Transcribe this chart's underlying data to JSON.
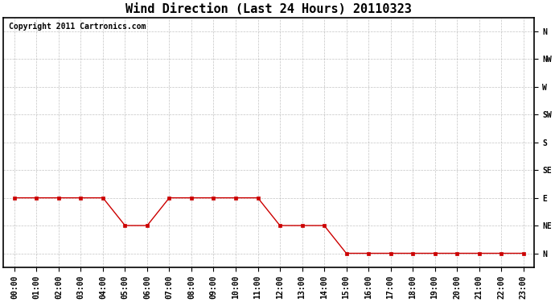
{
  "title": "Wind Direction (Last 24 Hours) 20110323",
  "copyright_text": "Copyright 2011 Cartronics.com",
  "x_labels": [
    "00:00",
    "01:00",
    "02:00",
    "03:00",
    "04:00",
    "05:00",
    "06:00",
    "07:00",
    "08:00",
    "09:00",
    "10:00",
    "11:00",
    "12:00",
    "13:00",
    "14:00",
    "15:00",
    "16:00",
    "17:00",
    "18:00",
    "19:00",
    "20:00",
    "21:00",
    "22:00",
    "23:00"
  ],
  "y_tick_positions": [
    0,
    1,
    2,
    3,
    4,
    5,
    6,
    7,
    8
  ],
  "y_tick_labels": [
    "N",
    "NE",
    "E",
    "SE",
    "S",
    "SW",
    "W",
    "NW",
    "N"
  ],
  "wind_data": [
    2,
    2,
    2,
    2,
    2,
    1,
    1,
    2,
    2,
    2,
    2,
    2,
    1,
    1,
    1,
    0,
    0,
    0,
    0,
    0,
    0,
    0,
    0,
    0
  ],
  "line_color": "#cc0000",
  "marker": "s",
  "marker_size": 3,
  "bg_color": "#ffffff",
  "plot_bg_color": "#ffffff",
  "grid_color": "#aaaaaa",
  "title_fontsize": 11,
  "copyright_fontsize": 7,
  "tick_fontsize": 7,
  "figsize": [
    6.9,
    3.75
  ],
  "dpi": 100
}
